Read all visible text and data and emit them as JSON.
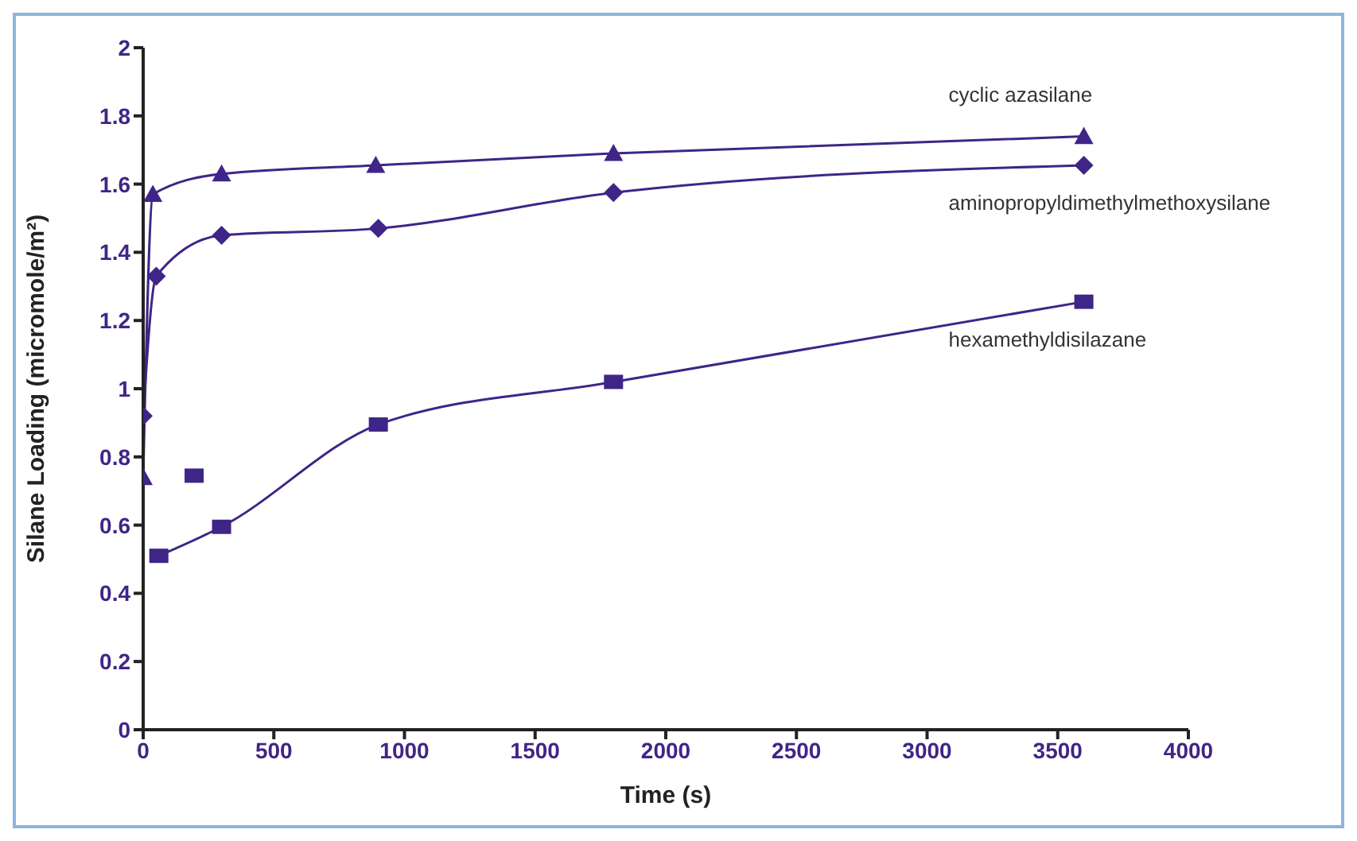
{
  "chart_data": {
    "type": "line",
    "xlabel": "Time (s)",
    "ylabel": "Silane Loading (micromole/m²)",
    "xlim": [
      0,
      4000
    ],
    "xticks": [
      0,
      500,
      1000,
      1500,
      2000,
      2500,
      3000,
      3500,
      4000
    ],
    "ylim": [
      0,
      2
    ],
    "yticks": [
      0,
      0.2,
      0.4,
      0.6,
      0.8,
      1,
      1.2,
      1.4,
      1.6,
      1.8,
      2
    ],
    "line_style": "solid",
    "series": [
      {
        "name": "cyclic azasilane",
        "color": "#3f2587",
        "marker": "triangle",
        "x": [
          0,
          37,
          300,
          890,
          1800,
          3600
        ],
        "values": [
          0.74,
          1.57,
          1.63,
          1.655,
          1.69,
          1.74
        ]
      },
      {
        "name": "aminopropyldimethylmethoxysilane",
        "color": "#3f2587",
        "marker": "diamond",
        "x": [
          0,
          50,
          300,
          900,
          1800,
          3600
        ],
        "values": [
          0.92,
          1.33,
          1.45,
          1.47,
          1.575,
          1.655
        ]
      },
      {
        "name": "hexamethyldisilazane",
        "color": "#3f2587",
        "marker": "square",
        "x": [
          60,
          300,
          900,
          1800,
          3600
        ],
        "values": [
          0.51,
          0.595,
          0.895,
          1.02,
          1.255
        ]
      },
      {
        "type": "scatter",
        "color": "#3f2587",
        "marker": "square",
        "x": [
          195
        ],
        "values": [
          0.745
        ]
      }
    ]
  }
}
